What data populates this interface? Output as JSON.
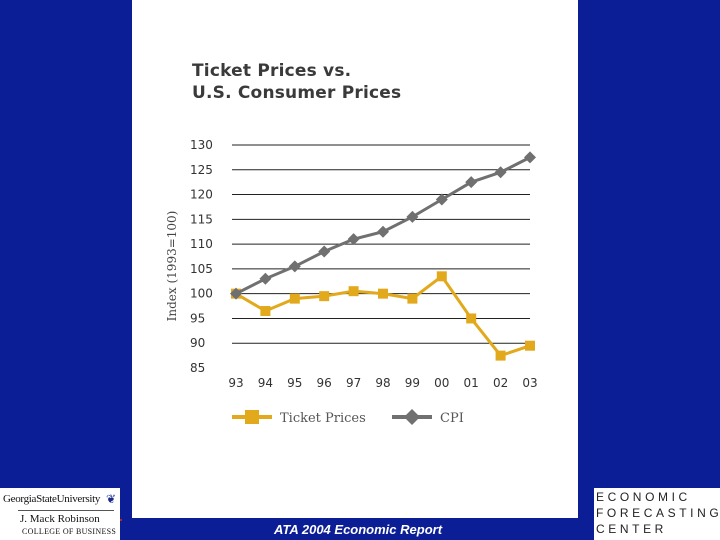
{
  "slide": {
    "footer_text": "ATA 2004 Economic Report",
    "left_logo": {
      "line1": "GeorgiaStateUniversity",
      "line2": "J. Mack Robinson",
      "line3": "COLLEGE OF BUSINESS"
    },
    "right_logo": [
      "ECONOMIC",
      "FORECASTING",
      "CENTER"
    ],
    "colors": {
      "background": "#0b1e96",
      "panel": "#ffffff",
      "accent": "#c81e1e"
    }
  },
  "chart_data": {
    "type": "line",
    "title": [
      "Ticket Prices vs.",
      "U.S. Consumer Prices"
    ],
    "xlabel": "",
    "ylabel": "Index (1993=100)",
    "categories": [
      "93",
      "94",
      "95",
      "96",
      "97",
      "98",
      "99",
      "00",
      "01",
      "02",
      "03"
    ],
    "ylim": [
      85,
      130
    ],
    "yticks": [
      130,
      125,
      120,
      115,
      110,
      105,
      100,
      95,
      90,
      85
    ],
    "grid": true,
    "legend_position": "bottom",
    "series": [
      {
        "name": "Ticket Prices",
        "color": "#e2a91c",
        "marker": "square",
        "values": [
          100,
          96.5,
          99,
          99.5,
          100.5,
          100,
          99,
          103.5,
          95,
          87.5,
          89.5
        ]
      },
      {
        "name": "CPI",
        "color": "#707070",
        "marker": "diamond",
        "values": [
          100,
          103,
          105.5,
          108.5,
          111,
          112.5,
          115.5,
          119,
          122.5,
          124.5,
          127.5
        ]
      }
    ]
  }
}
